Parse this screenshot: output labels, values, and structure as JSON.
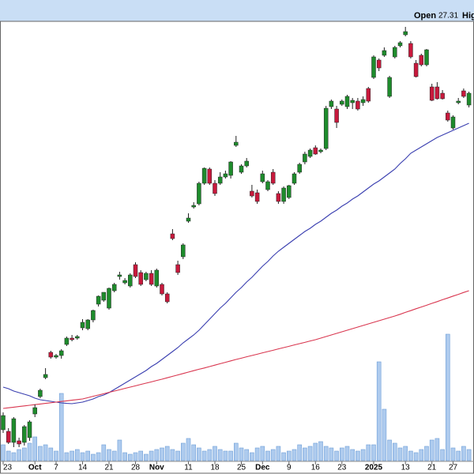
{
  "chart_data": {
    "type": "candlestick",
    "quote": {
      "open_label": "Open",
      "open": 27.31,
      "high_label": "Hig"
    },
    "categories": [
      "23",
      null,
      null,
      null,
      null,
      null,
      "Oct",
      null,
      null,
      null,
      "7",
      null,
      null,
      null,
      null,
      "14",
      null,
      null,
      null,
      null,
      "21",
      null,
      null,
      null,
      null,
      "28",
      null,
      null,
      null,
      "Nov",
      null,
      null,
      null,
      null,
      null,
      "11",
      null,
      null,
      null,
      null,
      "18",
      null,
      null,
      null,
      null,
      "25",
      null,
      null,
      null,
      "Dec",
      null,
      null,
      null,
      null,
      "9",
      null,
      null,
      null,
      null,
      "16",
      null,
      null,
      null,
      null,
      "23",
      null,
      null,
      null,
      null,
      null,
      "2025",
      null,
      null,
      null,
      null,
      null,
      "13",
      null,
      null,
      null,
      null,
      "21",
      null,
      null,
      null,
      "27",
      null,
      null,
      null
    ],
    "open": [
      2.3,
      2.2,
      1.5,
      1.6,
      1.5,
      1.8,
      3.3,
      4.4,
      5.6,
      7.2,
      6.9,
      7.0,
      7.7,
      8.1,
      8.1,
      8.75,
      8.7,
      9.25,
      10.25,
      10.5,
      10.0,
      11.1,
      12.0,
      11.6,
      11.4,
      12.75,
      12.25,
      11.8,
      12.2,
      11.4,
      11.5,
      10.9,
      14.7,
      12.75,
      13.25,
      15.5,
      16.4,
      16.6,
      17.9,
      18.8,
      17.9,
      17.9,
      18.3,
      18.4,
      20.3,
      18.6,
      19.0,
      17.4,
      17.3,
      18.0,
      17.5,
      18.6,
      17.25,
      16.75,
      17.0,
      17.9,
      18.6,
      19.25,
      19.6,
      20.15,
      19.9,
      20.1,
      22.75,
      22.6,
      22.9,
      22.75,
      23.0,
      23.1,
      23.0,
      23.9,
      24.6,
      25.7,
      26.0,
      23.4,
      25.9,
      26.6,
      27.3,
      26.75,
      25.5,
      26.0,
      25.4,
      24.0,
      24.0,
      23.6,
      22.35,
      21.4,
      23.0,
      23.75,
      22.85
    ],
    "high": [
      3.4,
      2.4,
      3.1,
      1.8,
      2.6,
      2.9,
      3.9,
      4.9,
      6.2,
      7.3,
      7.1,
      7.4,
      8.2,
      8.3,
      8.3,
      9.3,
      9.3,
      9.9,
      10.8,
      11.0,
      11.3,
      11.6,
      12.3,
      11.9,
      12.2,
      12.9,
      12.4,
      12.3,
      12.4,
      12.5,
      11.6,
      11.0,
      15.0,
      13.0,
      14.1,
      16.0,
      16.7,
      18.0,
      18.9,
      18.9,
      18.1,
      18.6,
      18.7,
      19.3,
      20.9,
      19.1,
      19.5,
      17.8,
      17.5,
      18.7,
      18.1,
      18.8,
      17.4,
      17.7,
      17.8,
      18.6,
      19.2,
      19.9,
      20.1,
      20.3,
      20.1,
      22.8,
      23.2,
      22.8,
      23.2,
      23.5,
      23.3,
      23.3,
      23.4,
      24.0,
      26.0,
      25.8,
      26.5,
      24.7,
      26.6,
      26.9,
      27.8,
      26.9,
      25.7,
      26.1,
      26.4,
      24.2,
      24.3,
      23.8,
      22.5,
      22.2,
      23.3,
      23.9,
      23.7
    ],
    "low": [
      2.1,
      1.4,
      1.2,
      1.2,
      1.3,
      1.6,
      3.1,
      4.3,
      5.5,
      6.8,
      6.8,
      6.8,
      7.6,
      7.9,
      8.0,
      8.6,
      8.6,
      9.1,
      10.1,
      10.4,
      9.9,
      11.0,
      11.8,
      11.5,
      11.3,
      11.9,
      11.4,
      11.7,
      11.4,
      11.3,
      10.8,
      10.3,
      14.3,
      12.1,
      13.1,
      15.4,
      16.3,
      16.5,
      17.8,
      17.8,
      17.1,
      17.8,
      18.2,
      18.2,
      20.2,
      18.5,
      18.9,
      17.0,
      16.6,
      17.9,
      17.4,
      17.8,
      16.6,
      16.6,
      16.9,
      17.8,
      18.5,
      19.1,
      19.5,
      19.7,
      19.8,
      20.0,
      22.6,
      21.4,
      22.8,
      22.6,
      22.6,
      22.5,
      22.8,
      23.0,
      24.5,
      25.0,
      25.9,
      23.3,
      25.8,
      26.5,
      27.2,
      25.8,
      24.6,
      25.3,
      25.3,
      23.1,
      23.2,
      23.2,
      21.8,
      21.3,
      22.9,
      23.3,
      22.7
    ],
    "close": [
      3.2,
      1.5,
      3.0,
      1.4,
      2.5,
      2.8,
      3.7,
      4.8,
      5.8,
      6.9,
      7.0,
      7.3,
      8.1,
      8.0,
      8.2,
      9.1,
      9.25,
      9.85,
      10.75,
      11.0,
      11.25,
      11.5,
      12.1,
      11.75,
      12.1,
      12.0,
      11.5,
      12.2,
      11.5,
      12.4,
      10.9,
      10.4,
      14.4,
      12.25,
      14.0,
      15.7,
      16.5,
      17.9,
      18.85,
      17.9,
      17.25,
      18.3,
      18.5,
      19.25,
      20.5,
      19.0,
      19.3,
      17.1,
      16.75,
      18.5,
      18.0,
      17.9,
      16.75,
      17.6,
      17.75,
      18.5,
      19.1,
      19.75,
      20.0,
      19.75,
      20.0,
      22.65,
      23.1,
      21.75,
      23.1,
      23.4,
      23.15,
      22.6,
      23.2,
      23.1,
      25.9,
      25.2,
      26.3,
      24.6,
      26.5,
      26.8,
      27.5,
      25.9,
      24.65,
      25.4,
      26.35,
      23.15,
      23.25,
      23.25,
      21.9,
      22.1,
      23.1,
      23.4,
      23.6
    ],
    "up_color": "#1e8c2c",
    "down_color": "#c8193c",
    "ylim": [
      0,
      28.1
    ],
    "volume": {
      "color": "#aecbee",
      "ylim": [
        0,
        170
      ],
      "values": [
        20,
        12,
        10,
        14,
        16,
        22,
        30,
        18,
        20,
        16,
        12,
        85,
        10,
        12,
        14,
        10,
        12,
        8,
        10,
        20,
        14,
        12,
        26,
        10,
        8,
        10,
        12,
        8,
        12,
        14,
        16,
        18,
        14,
        12,
        22,
        28,
        20,
        16,
        12,
        14,
        18,
        14,
        12,
        12,
        22,
        16,
        14,
        10,
        16,
        18,
        12,
        14,
        18,
        10,
        12,
        14,
        20,
        16,
        18,
        22,
        24,
        18,
        16,
        12,
        16,
        18,
        14,
        12,
        14,
        20,
        20,
        125,
        65,
        26,
        22,
        16,
        18,
        12,
        10,
        14,
        18,
        26,
        28,
        14,
        160,
        16,
        12,
        18,
        14
      ]
    },
    "moving_averages": [
      {
        "color": "#3a3fb0",
        "values": [
          5.0,
          4.9,
          4.75,
          4.65,
          4.55,
          4.45,
          4.3,
          4.2,
          4.15,
          4.1,
          4.05,
          4.0,
          3.97,
          3.95,
          4.0,
          4.05,
          4.15,
          4.25,
          4.4,
          4.5,
          4.65,
          4.85,
          5.05,
          5.25,
          5.45,
          5.65,
          5.85,
          6.05,
          6.3,
          6.5,
          6.75,
          7.0,
          7.25,
          7.5,
          7.8,
          8.05,
          8.3,
          8.6,
          8.95,
          9.3,
          9.65,
          10.0,
          10.3,
          10.65,
          11.0,
          11.3,
          11.65,
          11.95,
          12.3,
          12.65,
          12.95,
          13.3,
          13.6,
          13.85,
          14.1,
          14.35,
          14.6,
          14.85,
          15.05,
          15.3,
          15.5,
          15.75,
          16.0,
          16.2,
          16.45,
          16.65,
          16.9,
          17.1,
          17.35,
          17.6,
          17.85,
          18.05,
          18.3,
          18.55,
          18.8,
          19.15,
          19.45,
          19.8,
          20.0,
          20.2,
          20.4,
          20.6,
          20.8,
          20.95,
          21.1,
          21.25,
          21.4,
          21.55,
          21.7
        ]
      },
      {
        "color": "#d9364f",
        "values": [
          3.65,
          3.69,
          3.73,
          3.77,
          3.81,
          3.85,
          3.89,
          3.93,
          3.97,
          4.01,
          4.05,
          4.09,
          4.13,
          4.17,
          4.21,
          4.25,
          4.33,
          4.42,
          4.5,
          4.58,
          4.67,
          4.75,
          4.83,
          4.92,
          5.0,
          5.08,
          5.17,
          5.25,
          5.33,
          5.42,
          5.5,
          5.59,
          5.68,
          5.77,
          5.86,
          5.95,
          6.04,
          6.13,
          6.21,
          6.3,
          6.39,
          6.48,
          6.57,
          6.66,
          6.75,
          6.83,
          6.92,
          7.0,
          7.08,
          7.17,
          7.25,
          7.33,
          7.42,
          7.5,
          7.58,
          7.67,
          7.75,
          7.83,
          7.92,
          8.0,
          8.1,
          8.2,
          8.3,
          8.4,
          8.5,
          8.6,
          8.7,
          8.8,
          8.9,
          9.0,
          9.1,
          9.2,
          9.3,
          9.4,
          9.5,
          9.61,
          9.73,
          9.84,
          9.96,
          10.07,
          10.18,
          10.3,
          10.41,
          10.53,
          10.64,
          10.76,
          10.87,
          10.99,
          11.1
        ]
      }
    ]
  }
}
